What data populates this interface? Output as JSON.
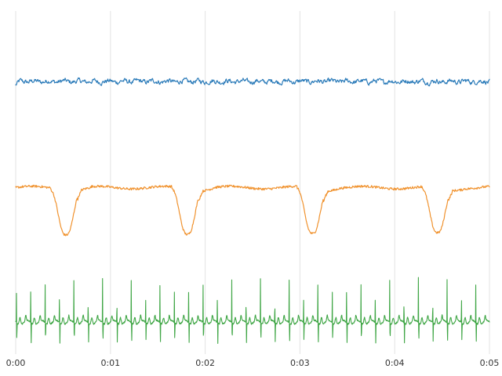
{
  "chart_data": {
    "type": "line",
    "x_axis": {
      "ticks": [
        "0:00",
        "0:01",
        "0:02",
        "0:03",
        "0:04",
        "0:05"
      ],
      "range_minutes": [
        0,
        5
      ]
    },
    "grid": "vertical",
    "legend": "none",
    "series": [
      {
        "color": "#2b7bb9",
        "kind": "noisy-flat",
        "baseline": 0.0,
        "noise_amplitude": 0.12,
        "y_range": [
          -1,
          1
        ]
      },
      {
        "color": "#f0922e",
        "kind": "periodic-dips",
        "baseline": 0.0,
        "dip_depth": -1.0,
        "dip_centers_minutes": [
          0.53,
          1.81,
          3.13,
          4.45
        ],
        "dip_width_minutes": 0.2,
        "y_range": [
          -1.2,
          0.4
        ]
      },
      {
        "color": "#3fa645",
        "kind": "spike-train",
        "beats": 33,
        "spike_height": 1.0,
        "trough": -0.45,
        "y_range": [
          -0.6,
          1.05
        ]
      }
    ]
  }
}
